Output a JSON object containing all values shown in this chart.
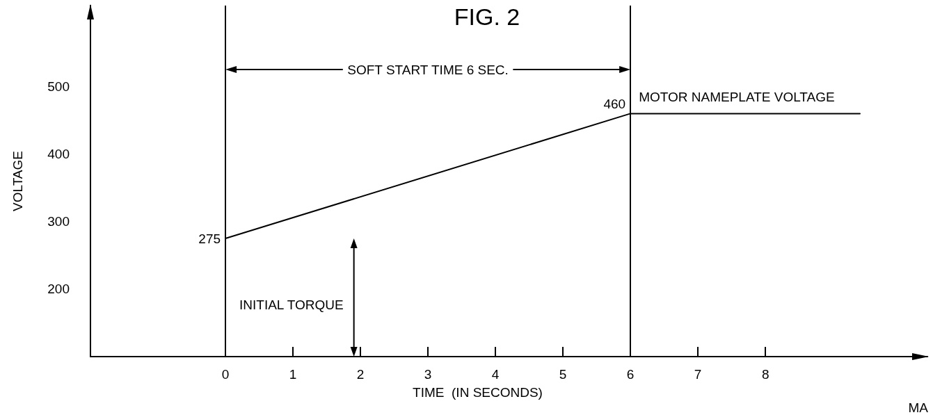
{
  "chart_data": {
    "type": "line",
    "title": "FIG. 2",
    "xlabel": "TIME  (IN SECONDS)",
    "ylabel": "VOLTAGE",
    "x": [
      0,
      6,
      9.4
    ],
    "values": [
      275,
      460,
      460
    ],
    "value_labels": [
      "275",
      "460",
      null
    ],
    "color": "#000000",
    "marker": "none",
    "line_style": "solid",
    "xlim": [
      -2,
      10.4
    ],
    "ylim": [
      100,
      620
    ],
    "xticks": [
      0,
      1,
      2,
      3,
      4,
      5,
      6,
      7,
      8
    ],
    "yticks": [
      200,
      300,
      400,
      500
    ],
    "grid": false,
    "ref_lines": [
      {
        "axis": "x",
        "value": 0,
        "label": null
      },
      {
        "axis": "x",
        "value": 6,
        "label": null
      }
    ],
    "annotations": [
      "MOTOR NAMEPLATE VOLTAGE",
      "INITIAL TORQUE",
      "SOFT START TIME 6 SEC.",
      "MA"
    ]
  }
}
